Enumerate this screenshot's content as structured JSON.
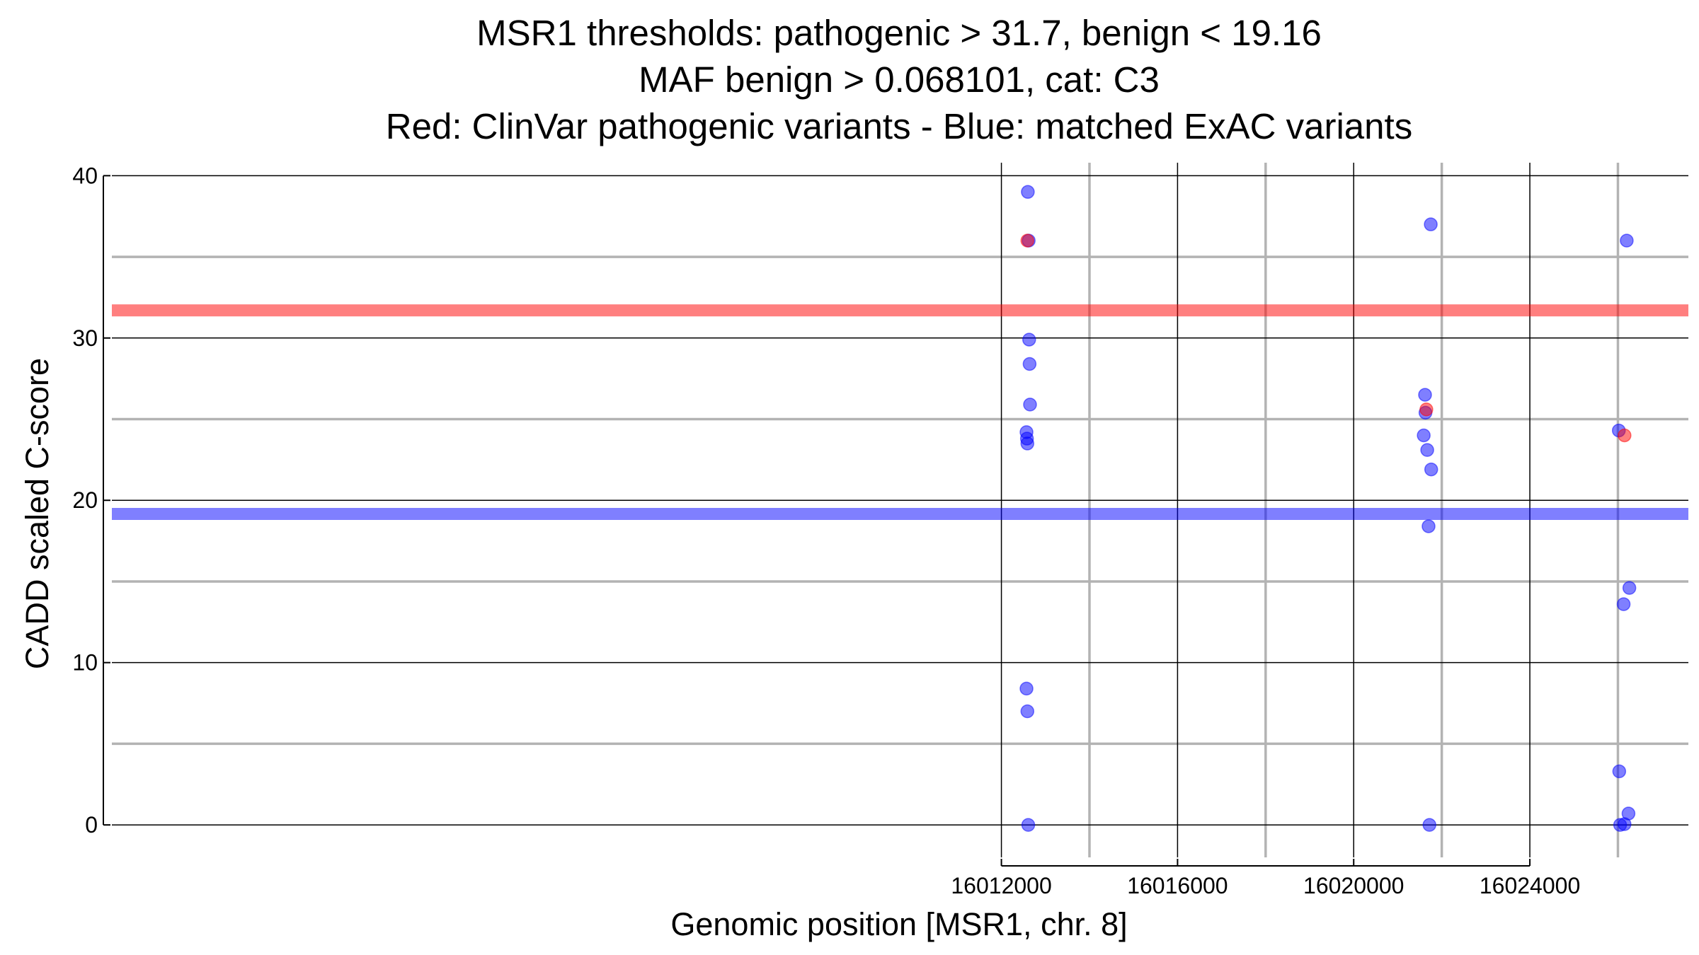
{
  "chart_data": {
    "type": "scatter",
    "title_lines": [
      "MSR1 thresholds: pathogenic > 31.7, benign < 19.16",
      "MAF benign > 0.068101, cat: C3",
      "Red: ClinVar pathogenic variants - Blue: matched ExAC variants"
    ],
    "xlabel": "Genomic position [MSR1, chr. 8]",
    "ylabel": "CADD scaled C-score",
    "xlim": [
      15991800,
      16027600
    ],
    "ylim": [
      -2,
      40.8
    ],
    "x_ticks": [
      16012000,
      16016000,
      16020000,
      16024000
    ],
    "x_tick_labels": [
      "16012000",
      "16016000",
      "16020000",
      "16024000"
    ],
    "x_minor_gridlines": [
      16014000,
      16018000,
      16022000,
      16026000
    ],
    "y_ticks": [
      0,
      10,
      20,
      30,
      40
    ],
    "y_tick_labels": [
      "0",
      "10",
      "20",
      "30",
      "40"
    ],
    "y_minor_gridlines": [
      5,
      15,
      25,
      35
    ],
    "grid": true,
    "thresholds": [
      {
        "name": "pathogenic",
        "value": 31.7,
        "color": "#ff0000"
      },
      {
        "name": "benign",
        "value": 19.16,
        "color": "#0000ff"
      }
    ],
    "series": [
      {
        "name": "matched ExAC variants",
        "color": "#0000ff",
        "points": [
          {
            "x": 16012600,
            "y": 39.0
          },
          {
            "x": 16012620,
            "y": 36.0
          },
          {
            "x": 16012630,
            "y": 29.9
          },
          {
            "x": 16012640,
            "y": 28.4
          },
          {
            "x": 16012650,
            "y": 25.9
          },
          {
            "x": 16012570,
            "y": 24.2
          },
          {
            "x": 16012580,
            "y": 23.8
          },
          {
            "x": 16012590,
            "y": 23.5
          },
          {
            "x": 16012570,
            "y": 8.4
          },
          {
            "x": 16012590,
            "y": 7.0
          },
          {
            "x": 16012610,
            "y": 0.0
          },
          {
            "x": 16021750,
            "y": 37.0
          },
          {
            "x": 16021620,
            "y": 26.5
          },
          {
            "x": 16021630,
            "y": 25.4
          },
          {
            "x": 16021590,
            "y": 24.0
          },
          {
            "x": 16021670,
            "y": 23.1
          },
          {
            "x": 16021760,
            "y": 21.9
          },
          {
            "x": 16021700,
            "y": 18.4
          },
          {
            "x": 16021720,
            "y": 0.0
          },
          {
            "x": 16026200,
            "y": 36.0
          },
          {
            "x": 16026020,
            "y": 24.3
          },
          {
            "x": 16026260,
            "y": 14.6
          },
          {
            "x": 16026130,
            "y": 13.6
          },
          {
            "x": 16026030,
            "y": 3.3
          },
          {
            "x": 16026240,
            "y": 0.7
          },
          {
            "x": 16026050,
            "y": 0.0
          },
          {
            "x": 16026150,
            "y": 0.05
          }
        ]
      },
      {
        "name": "ClinVar pathogenic variants",
        "color": "#ff0000",
        "points": [
          {
            "x": 16012590,
            "y": 36.0
          },
          {
            "x": 16021650,
            "y": 25.6
          },
          {
            "x": 16026150,
            "y": 24.0
          }
        ]
      }
    ]
  }
}
